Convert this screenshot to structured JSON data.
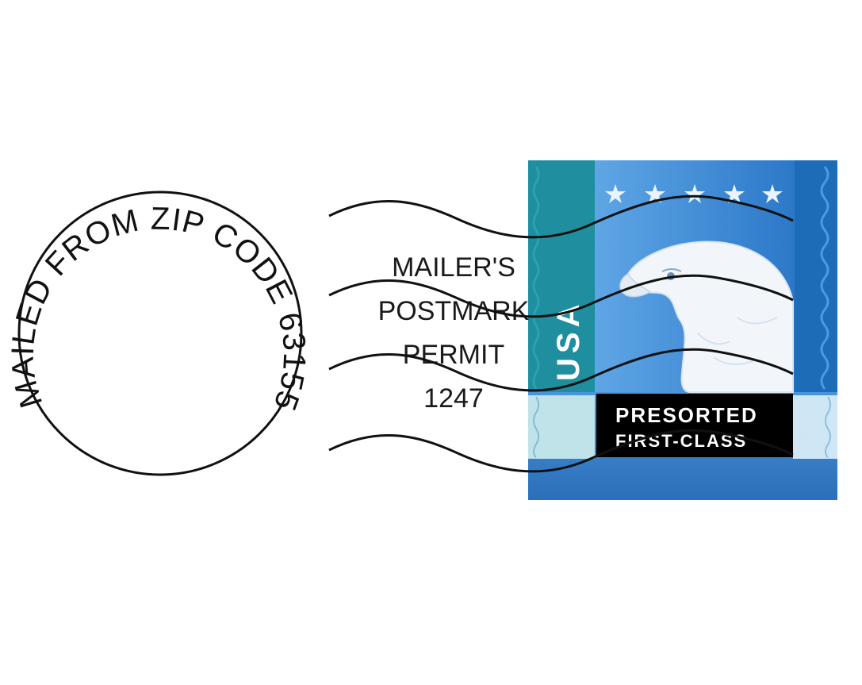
{
  "postmark": {
    "ring_text": "MAILED FROM ZIP CODE 63155",
    "permit_lines": [
      "MAILER'S",
      "POSTMARK",
      "PERMIT",
      "1247"
    ]
  },
  "stamp": {
    "country": "USA",
    "line1": "PRESORTED",
    "line2": "FIRST-CLASS",
    "icon": "eagle-head-icon",
    "colors": {
      "teal": "#1f8fa0",
      "blue": "#3b88d6",
      "dark_blue": "#1d6cb8",
      "label_bg": "#000000"
    }
  }
}
